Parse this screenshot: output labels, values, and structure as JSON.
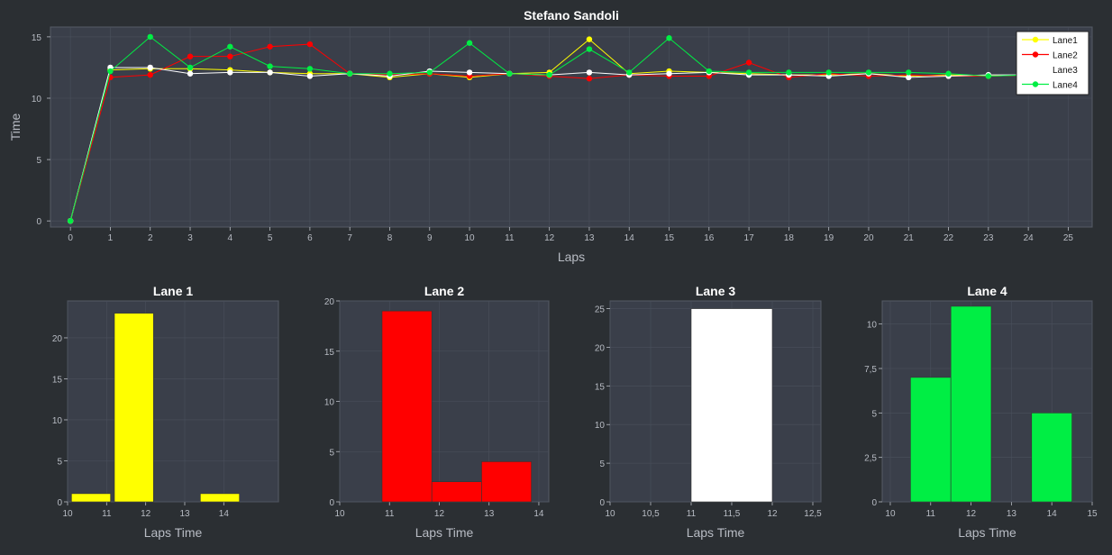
{
  "colors": {
    "background": "#2b2f33",
    "plot_area": "#3a3f4a",
    "grid": "#4a505c",
    "axis_text": "#b8bcc4",
    "title_text": "#ffffff",
    "lane1": "#ffff00",
    "lane2": "#ff0000",
    "lane3": "#ffffff",
    "lane4": "#00ee44"
  },
  "chart_data": [
    {
      "type": "line",
      "title": "Stefano Sandoli",
      "xlabel": "Laps",
      "ylabel": "Time",
      "xlim": [
        -0.5,
        25.6
      ],
      "ylim": [
        -0.5,
        15.8
      ],
      "x_ticks": [
        0,
        1,
        2,
        3,
        4,
        5,
        6,
        7,
        8,
        9,
        10,
        11,
        12,
        13,
        14,
        15,
        16,
        17,
        18,
        19,
        20,
        21,
        22,
        23,
        24,
        25
      ],
      "y_ticks": [
        0,
        5,
        10,
        15
      ],
      "grid": true,
      "legend_position": "top-right",
      "series": [
        {
          "name": "Lane1",
          "color": "#ffff00",
          "x": [
            0,
            1,
            2,
            3,
            4,
            5,
            6,
            7,
            8,
            9,
            10,
            11,
            12,
            13,
            14,
            15,
            16,
            17,
            18,
            19,
            20,
            21,
            22,
            23,
            24
          ],
          "y": [
            0,
            12.3,
            12.4,
            12.4,
            12.3,
            12.1,
            12.0,
            12.0,
            11.7,
            12.0,
            11.7,
            12.0,
            12.1,
            14.8,
            12.0,
            12.2,
            12.1,
            12.0,
            11.9,
            11.9,
            12.0,
            11.8,
            11.9,
            11.8,
            11.9
          ]
        },
        {
          "name": "Lane2",
          "color": "#ff0000",
          "x": [
            0,
            1,
            2,
            3,
            4,
            5,
            6,
            7,
            8,
            9,
            10,
            11,
            12,
            13,
            14,
            15,
            16,
            17,
            18,
            19,
            20,
            21,
            22,
            23,
            24
          ],
          "y": [
            0,
            11.7,
            11.9,
            13.4,
            13.4,
            14.2,
            14.4,
            12.0,
            11.9,
            12.0,
            11.8,
            12.0,
            11.8,
            11.6,
            11.9,
            11.8,
            11.8,
            12.9,
            11.7,
            12.0,
            11.8,
            11.9,
            11.8,
            11.8,
            11.9
          ]
        },
        {
          "name": "Lane3",
          "color": "#ffffff",
          "x": [
            0,
            1,
            2,
            3,
            4,
            5,
            6,
            7,
            8,
            9,
            10,
            11,
            12,
            13,
            14,
            15,
            16,
            17,
            18,
            19,
            20,
            21,
            22,
            23,
            24
          ],
          "y": [
            0,
            12.5,
            12.5,
            12.0,
            12.1,
            12.1,
            11.8,
            12.0,
            11.8,
            12.2,
            12.1,
            12.0,
            11.9,
            12.1,
            11.9,
            12.0,
            12.1,
            11.9,
            11.9,
            11.8,
            12.0,
            11.7,
            11.8,
            11.9,
            11.9
          ]
        },
        {
          "name": "Lane4",
          "color": "#00ee44",
          "x": [
            0,
            1,
            2,
            3,
            4,
            5,
            6,
            7,
            8,
            9,
            10,
            11,
            12,
            13,
            14,
            15,
            16,
            17,
            18,
            19,
            20,
            21,
            22,
            23,
            24
          ],
          "y": [
            0,
            12.2,
            15.0,
            12.5,
            14.2,
            12.6,
            12.4,
            12.0,
            12.0,
            12.1,
            14.5,
            12.0,
            11.9,
            14.0,
            12.1,
            14.9,
            12.2,
            12.1,
            12.1,
            12.1,
            12.1,
            12.1,
            12.0,
            11.8,
            11.9
          ]
        }
      ]
    },
    {
      "type": "bar",
      "title": "Lane 1",
      "xlabel": "Laps Time",
      "color": "#ffff00",
      "xlim": [
        10,
        15.4
      ],
      "ylim": [
        0,
        24.5
      ],
      "x_ticks": [
        10,
        11,
        12,
        13,
        14
      ],
      "x_tick_labels": [
        "10",
        "11",
        "12",
        "13",
        "14"
      ],
      "y_ticks": [
        0,
        5,
        10,
        15,
        20
      ],
      "y_tick_labels": [
        "0",
        "5",
        "10",
        "15",
        "20"
      ],
      "bars": [
        {
          "x0": 10.1,
          "x1": 11.1,
          "value": 1
        },
        {
          "x0": 11.2,
          "x1": 12.2,
          "value": 23
        },
        {
          "x0": 13.4,
          "x1": 14.4,
          "value": 1
        }
      ]
    },
    {
      "type": "bar",
      "title": "Lane 2",
      "xlabel": "Laps Time",
      "color": "#ff0000",
      "xlim": [
        10,
        14.2
      ],
      "ylim": [
        0,
        20
      ],
      "x_ticks": [
        10,
        11,
        12,
        13,
        14
      ],
      "x_tick_labels": [
        "10",
        "11",
        "12",
        "13",
        "14"
      ],
      "y_ticks": [
        0,
        5,
        10,
        15,
        20
      ],
      "y_tick_labels": [
        "0",
        "5",
        "10",
        "15",
        "20"
      ],
      "bars": [
        {
          "x0": 10.85,
          "x1": 11.85,
          "value": 19
        },
        {
          "x0": 11.85,
          "x1": 12.85,
          "value": 2
        },
        {
          "x0": 12.85,
          "x1": 13.85,
          "value": 4
        }
      ]
    },
    {
      "type": "bar",
      "title": "Lane 3",
      "xlabel": "Laps Time",
      "color": "#ffffff",
      "xlim": [
        10,
        12.6
      ],
      "ylim": [
        0,
        26
      ],
      "x_ticks": [
        10,
        10.5,
        11,
        11.5,
        12,
        12.5
      ],
      "x_tick_labels": [
        "10",
        "10,5",
        "11",
        "11,5",
        "12",
        "12,5"
      ],
      "y_ticks": [
        0,
        5,
        10,
        15,
        20,
        25
      ],
      "y_tick_labels": [
        "0",
        "5",
        "10",
        "15",
        "20",
        "25"
      ],
      "bars": [
        {
          "x0": 11.0,
          "x1": 12.0,
          "value": 25
        }
      ]
    },
    {
      "type": "bar",
      "title": "Lane 4",
      "xlabel": "Laps Time",
      "color": "#00ee44",
      "xlim": [
        9.8,
        15
      ],
      "ylim": [
        0,
        11.3
      ],
      "x_ticks": [
        10,
        11,
        12,
        13,
        14,
        15
      ],
      "x_tick_labels": [
        "10",
        "11",
        "12",
        "13",
        "14",
        "15"
      ],
      "y_ticks": [
        0,
        2.5,
        5,
        7.5,
        10
      ],
      "y_tick_labels": [
        "0",
        "2,5",
        "5",
        "7,5",
        "10"
      ],
      "bars": [
        {
          "x0": 10.5,
          "x1": 11.5,
          "value": 7
        },
        {
          "x0": 11.5,
          "x1": 12.5,
          "value": 11
        },
        {
          "x0": 13.5,
          "x1": 14.5,
          "value": 5
        }
      ]
    }
  ]
}
